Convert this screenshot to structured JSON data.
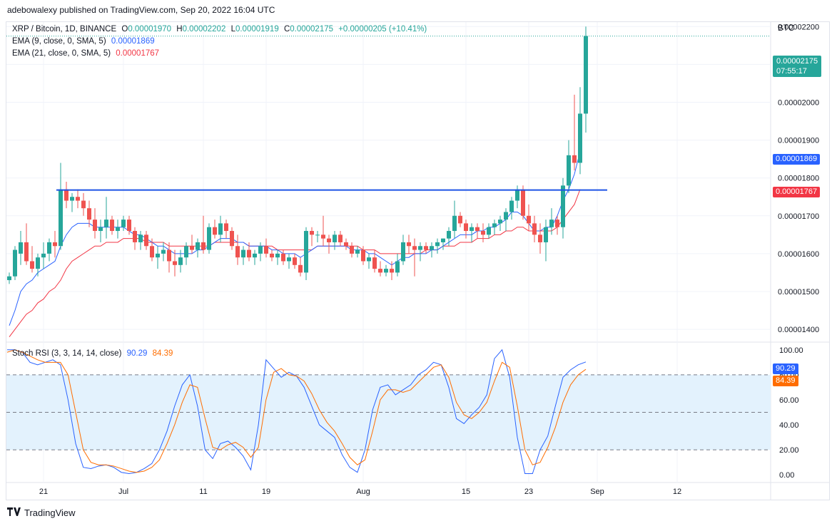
{
  "header": {
    "publisher_line": "adebowalexy published on TradingView.com, Sep 20, 2022 16:04 UTC"
  },
  "legend": {
    "symbol": "XRP / Bitcoin, 1D, BINANCE",
    "o_label": "O",
    "o_value": "0.00001970",
    "h_label": "H",
    "h_value": "0.00002202",
    "l_label": "L",
    "l_value": "0.00001919",
    "c_label": "C",
    "c_value": "0.00002175",
    "change": "+0.00000205 (+10.41%)",
    "ema9_label": "EMA (9, close, 0, SMA, 5)",
    "ema9_value": "0.00001869",
    "ema21_label": "EMA (21, close, 0, SMA, 5)",
    "ema21_value": "0.00001767",
    "rsi_label": "Stoch RSI (3, 3, 14, 14, close)",
    "rsi_k_value": "90.29",
    "rsi_d_value": "84.39"
  },
  "price_axis": {
    "currency": "BTC",
    "last_price": "0.00002175",
    "countdown": "07:55:17",
    "ema9_tag": "0.00001869",
    "ema21_tag": "0.00001767"
  },
  "rsi_axis": {
    "k_tag": "90.29",
    "d_tag": "84.39"
  },
  "footer": {
    "brand": "TradingView"
  },
  "colors": {
    "up": "#26a69a",
    "down": "#ef5350",
    "ema9": "#2962ff",
    "ema21": "#f23645",
    "rsi_k": "#2962ff",
    "rsi_d": "#ff6d00",
    "hline": "#1e53e5",
    "band": "#e3f2fd"
  },
  "chart_data": [
    {
      "type": "candlestick",
      "title": "XRP / Bitcoin, 1D, BINANCE",
      "ylim": [
        1.37e-05,
        2.21e-05
      ],
      "y_ticks": [
        1.4e-05,
        1.5e-05,
        1.6e-05,
        1.7e-05,
        1.8e-05,
        1.9e-05,
        2e-05,
        2.1e-05,
        2.2e-05
      ],
      "y_tick_labels": [
        "0.00001400",
        "0.00001500",
        "0.00001600",
        "0.00001700",
        "0.00001800",
        "0.00001900",
        "0.00002000",
        "0.00002100",
        "0.00002200"
      ],
      "x_tick_labels": [
        "21",
        "Jul",
        "11",
        "19",
        "Aug",
        "15",
        "23",
        "Sep",
        "12"
      ],
      "x_tick_index": [
        6,
        20,
        34,
        45,
        62,
        80,
        91,
        103,
        117
      ],
      "horizontal_line": 1.768e-05,
      "ohlc": [
        [
          1.53e-05,
          1.55e-05,
          1.52e-05,
          1.54e-05
        ],
        [
          1.54e-05,
          1.62e-05,
          1.53e-05,
          1.61e-05
        ],
        [
          1.6e-05,
          1.66e-05,
          1.57e-05,
          1.63e-05
        ],
        [
          1.63e-05,
          1.68e-05,
          1.57e-05,
          1.58e-05
        ],
        [
          1.58e-05,
          1.62e-05,
          1.55e-05,
          1.56e-05
        ],
        [
          1.56e-05,
          1.6e-05,
          1.54e-05,
          1.59e-05
        ],
        [
          1.59e-05,
          1.63e-05,
          1.56e-05,
          1.6e-05
        ],
        [
          1.6e-05,
          1.64e-05,
          1.58e-05,
          1.63e-05
        ],
        [
          1.63e-05,
          1.66e-05,
          1.59e-05,
          1.62e-05
        ],
        [
          1.62e-05,
          1.84e-05,
          1.61e-05,
          1.77e-05
        ],
        [
          1.77e-05,
          1.79e-05,
          1.72e-05,
          1.74e-05
        ],
        [
          1.74e-05,
          1.76e-05,
          1.71e-05,
          1.75e-05
        ],
        [
          1.75e-05,
          1.77e-05,
          1.72e-05,
          1.74e-05
        ],
        [
          1.74e-05,
          1.76e-05,
          1.7e-05,
          1.72e-05
        ],
        [
          1.72e-05,
          1.74e-05,
          1.67e-05,
          1.69e-05
        ],
        [
          1.69e-05,
          1.72e-05,
          1.64e-05,
          1.66e-05
        ],
        [
          1.66e-05,
          1.69e-05,
          1.63e-05,
          1.67e-05
        ],
        [
          1.67e-05,
          1.75e-05,
          1.64e-05,
          1.69e-05
        ],
        [
          1.69e-05,
          1.7e-05,
          1.65e-05,
          1.66e-05
        ],
        [
          1.66e-05,
          1.69e-05,
          1.64e-05,
          1.67e-05
        ],
        [
          1.67e-05,
          1.7e-05,
          1.66e-05,
          1.69e-05
        ],
        [
          1.69e-05,
          1.7e-05,
          1.65e-05,
          1.66e-05
        ],
        [
          1.66e-05,
          1.67e-05,
          1.61e-05,
          1.63e-05
        ],
        [
          1.63e-05,
          1.66e-05,
          1.61e-05,
          1.65e-05
        ],
        [
          1.65e-05,
          1.66e-05,
          1.61e-05,
          1.62e-05
        ],
        [
          1.62e-05,
          1.64e-05,
          1.58e-05,
          1.59e-05
        ],
        [
          1.59e-05,
          1.62e-05,
          1.56e-05,
          1.6e-05
        ],
        [
          1.6e-05,
          1.63e-05,
          1.58e-05,
          1.61e-05
        ],
        [
          1.61e-05,
          1.63e-05,
          1.55e-05,
          1.58e-05
        ],
        [
          1.58e-05,
          1.61e-05,
          1.54e-05,
          1.57e-05
        ],
        [
          1.57e-05,
          1.61e-05,
          1.55e-05,
          1.59e-05
        ],
        [
          1.59e-05,
          1.63e-05,
          1.57e-05,
          1.62e-05
        ],
        [
          1.62e-05,
          1.65e-05,
          1.6e-05,
          1.61e-05
        ],
        [
          1.61e-05,
          1.64e-05,
          1.59e-05,
          1.63e-05
        ],
        [
          1.63e-05,
          1.7e-05,
          1.6e-05,
          1.61e-05
        ],
        [
          1.61e-05,
          1.68e-05,
          1.6e-05,
          1.67e-05
        ],
        [
          1.67e-05,
          1.69e-05,
          1.64e-05,
          1.65e-05
        ],
        [
          1.65e-05,
          1.7e-05,
          1.63e-05,
          1.68e-05
        ],
        [
          1.68e-05,
          1.69e-05,
          1.64e-05,
          1.66e-05
        ],
        [
          1.66e-05,
          1.67e-05,
          1.61e-05,
          1.62e-05
        ],
        [
          1.62e-05,
          1.65e-05,
          1.57e-05,
          1.59e-05
        ],
        [
          1.59e-05,
          1.62e-05,
          1.57e-05,
          1.61e-05
        ],
        [
          1.61e-05,
          1.63e-05,
          1.58e-05,
          1.59e-05
        ],
        [
          1.59e-05,
          1.61e-05,
          1.57e-05,
          1.6e-05
        ],
        [
          1.6e-05,
          1.63e-05,
          1.58e-05,
          1.62e-05
        ],
        [
          1.62e-05,
          1.64e-05,
          1.59e-05,
          1.6e-05
        ],
        [
          1.6e-05,
          1.61e-05,
          1.58e-05,
          1.59e-05
        ],
        [
          1.59e-05,
          1.61e-05,
          1.57e-05,
          1.6e-05
        ],
        [
          1.6e-05,
          1.61e-05,
          1.57e-05,
          1.58e-05
        ],
        [
          1.58e-05,
          1.6e-05,
          1.56e-05,
          1.59e-05
        ],
        [
          1.59e-05,
          1.6e-05,
          1.56e-05,
          1.57e-05
        ],
        [
          1.57e-05,
          1.59e-05,
          1.54e-05,
          1.55e-05
        ],
        [
          1.55e-05,
          1.67e-05,
          1.53e-05,
          1.66e-05
        ],
        [
          1.66e-05,
          1.67e-05,
          1.62e-05,
          1.65e-05
        ],
        [
          1.65e-05,
          1.66e-05,
          1.63e-05,
          1.65e-05
        ],
        [
          1.65e-05,
          1.7e-05,
          1.62e-05,
          1.64e-05
        ],
        [
          1.64e-05,
          1.65e-05,
          1.6e-05,
          1.63e-05
        ],
        [
          1.63e-05,
          1.66e-05,
          1.61e-05,
          1.65e-05
        ],
        [
          1.65e-05,
          1.66e-05,
          1.62e-05,
          1.63e-05
        ],
        [
          1.63e-05,
          1.64e-05,
          1.61e-05,
          1.62e-05
        ],
        [
          1.62e-05,
          1.63e-05,
          1.59e-05,
          1.6e-05
        ],
        [
          1.6e-05,
          1.62e-05,
          1.59e-05,
          1.61e-05
        ],
        [
          1.61e-05,
          1.62e-05,
          1.57e-05,
          1.58e-05
        ],
        [
          1.58e-05,
          1.6e-05,
          1.56e-05,
          1.59e-05
        ],
        [
          1.59e-05,
          1.61e-05,
          1.55e-05,
          1.56e-05
        ],
        [
          1.56e-05,
          1.58e-05,
          1.54e-05,
          1.55e-05
        ],
        [
          1.55e-05,
          1.57e-05,
          1.54e-05,
          1.56e-05
        ],
        [
          1.56e-05,
          1.58e-05,
          1.53e-05,
          1.55e-05
        ],
        [
          1.55e-05,
          1.6e-05,
          1.54e-05,
          1.58e-05
        ],
        [
          1.58e-05,
          1.65e-05,
          1.57e-05,
          1.63e-05
        ],
        [
          1.63e-05,
          1.65e-05,
          1.6e-05,
          1.62e-05
        ],
        [
          1.62e-05,
          1.64e-05,
          1.54e-05,
          1.61e-05
        ],
        [
          1.61e-05,
          1.63e-05,
          1.58e-05,
          1.62e-05
        ],
        [
          1.62e-05,
          1.63e-05,
          1.6e-05,
          1.61e-05
        ],
        [
          1.61e-05,
          1.63e-05,
          1.59e-05,
          1.62e-05
        ],
        [
          1.62e-05,
          1.64e-05,
          1.6e-05,
          1.63e-05
        ],
        [
          1.63e-05,
          1.64e-05,
          1.61e-05,
          1.64e-05
        ],
        [
          1.64e-05,
          1.67e-05,
          1.62e-05,
          1.66e-05
        ],
        [
          1.66e-05,
          1.74e-05,
          1.64e-05,
          1.7e-05
        ],
        [
          1.7e-05,
          1.71e-05,
          1.67e-05,
          1.68e-05
        ],
        [
          1.68e-05,
          1.69e-05,
          1.64e-05,
          1.66e-05
        ],
        [
          1.66e-05,
          1.68e-05,
          1.63e-05,
          1.67e-05
        ],
        [
          1.67e-05,
          1.68e-05,
          1.64e-05,
          1.66e-05
        ],
        [
          1.66e-05,
          1.68e-05,
          1.63e-05,
          1.65e-05
        ],
        [
          1.65e-05,
          1.68e-05,
          1.64e-05,
          1.67e-05
        ],
        [
          1.67e-05,
          1.69e-05,
          1.65e-05,
          1.68e-05
        ],
        [
          1.68e-05,
          1.7e-05,
          1.66e-05,
          1.69e-05
        ],
        [
          1.69e-05,
          1.72e-05,
          1.66e-05,
          1.71e-05
        ],
        [
          1.71e-05,
          1.75e-05,
          1.69e-05,
          1.74e-05
        ],
        [
          1.74e-05,
          1.78e-05,
          1.72e-05,
          1.77e-05
        ],
        [
          1.77e-05,
          1.78e-05,
          1.69e-05,
          1.7e-05
        ],
        [
          1.7e-05,
          1.73e-05,
          1.66e-05,
          1.68e-05
        ],
        [
          1.68e-05,
          1.7e-05,
          1.63e-05,
          1.65e-05
        ],
        [
          1.65e-05,
          1.68e-05,
          1.6e-05,
          1.63e-05
        ],
        [
          1.63e-05,
          1.69e-05,
          1.58e-05,
          1.67e-05
        ],
        [
          1.67e-05,
          1.72e-05,
          1.65e-05,
          1.69e-05
        ],
        [
          1.69e-05,
          1.7e-05,
          1.65e-05,
          1.67e-05
        ],
        [
          1.67e-05,
          1.8e-05,
          1.64e-05,
          1.78e-05
        ],
        [
          1.78e-05,
          1.9e-05,
          1.76e-05,
          1.86e-05
        ],
        [
          1.86e-05,
          2.02e-05,
          1.82e-05,
          1.84e-05
        ],
        [
          1.84e-05,
          2.04e-05,
          1.81e-05,
          1.97e-05
        ],
        [
          1.97e-05,
          2.2e-05,
          1.92e-05,
          2.175e-05
        ]
      ],
      "ema9": [
        1.41e-05,
        1.45e-05,
        1.5e-05,
        1.52e-05,
        1.53e-05,
        1.55e-05,
        1.56e-05,
        1.57e-05,
        1.58e-05,
        1.62e-05,
        1.65e-05,
        1.67e-05,
        1.68e-05,
        1.68e-05,
        1.68e-05,
        1.67e-05,
        1.67e-05,
        1.67e-05,
        1.67e-05,
        1.67e-05,
        1.67e-05,
        1.66e-05,
        1.65e-05,
        1.65e-05,
        1.64e-05,
        1.63e-05,
        1.62e-05,
        1.62e-05,
        1.61e-05,
        1.6e-05,
        1.6e-05,
        1.6e-05,
        1.6e-05,
        1.61e-05,
        1.61e-05,
        1.62e-05,
        1.63e-05,
        1.64e-05,
        1.64e-05,
        1.64e-05,
        1.63e-05,
        1.63e-05,
        1.62e-05,
        1.62e-05,
        1.62e-05,
        1.62e-05,
        1.61e-05,
        1.61e-05,
        1.6e-05,
        1.6e-05,
        1.6e-05,
        1.59e-05,
        1.6e-05,
        1.61e-05,
        1.62e-05,
        1.62e-05,
        1.62e-05,
        1.62e-05,
        1.62e-05,
        1.62e-05,
        1.61e-05,
        1.61e-05,
        1.61e-05,
        1.6e-05,
        1.6e-05,
        1.59e-05,
        1.58e-05,
        1.57e-05,
        1.58e-05,
        1.59e-05,
        1.59e-05,
        1.6e-05,
        1.6e-05,
        1.6e-05,
        1.61e-05,
        1.61e-05,
        1.62e-05,
        1.63e-05,
        1.64e-05,
        1.65e-05,
        1.65e-05,
        1.65e-05,
        1.66e-05,
        1.66e-05,
        1.67e-05,
        1.67e-05,
        1.68e-05,
        1.69e-05,
        1.71e-05,
        1.71e-05,
        1.7e-05,
        1.68e-05,
        1.66e-05,
        1.66e-05,
        1.67e-05,
        1.67e-05,
        1.7e-05,
        1.74e-05,
        1.77e-05,
        1.81e-05,
        1.87e-05
      ],
      "ema21": [
        1.38e-05,
        1.4e-05,
        1.42e-05,
        1.44e-05,
        1.45e-05,
        1.47e-05,
        1.48e-05,
        1.5e-05,
        1.51e-05,
        1.53e-05,
        1.56e-05,
        1.58e-05,
        1.59e-05,
        1.6e-05,
        1.61e-05,
        1.62e-05,
        1.62e-05,
        1.63e-05,
        1.63e-05,
        1.63e-05,
        1.64e-05,
        1.64e-05,
        1.64e-05,
        1.64e-05,
        1.63e-05,
        1.63e-05,
        1.63e-05,
        1.63e-05,
        1.62e-05,
        1.62e-05,
        1.62e-05,
        1.62e-05,
        1.62e-05,
        1.62e-05,
        1.62e-05,
        1.62e-05,
        1.63e-05,
        1.63e-05,
        1.63e-05,
        1.63e-05,
        1.63e-05,
        1.63e-05,
        1.62e-05,
        1.62e-05,
        1.62e-05,
        1.62e-05,
        1.62e-05,
        1.61e-05,
        1.61e-05,
        1.61e-05,
        1.61e-05,
        1.61e-05,
        1.61e-05,
        1.61e-05,
        1.62e-05,
        1.62e-05,
        1.62e-05,
        1.62e-05,
        1.62e-05,
        1.62e-05,
        1.62e-05,
        1.62e-05,
        1.61e-05,
        1.61e-05,
        1.61e-05,
        1.6e-05,
        1.6e-05,
        1.6e-05,
        1.6e-05,
        1.6e-05,
        1.6e-05,
        1.6e-05,
        1.6e-05,
        1.61e-05,
        1.61e-05,
        1.61e-05,
        1.62e-05,
        1.62e-05,
        1.62e-05,
        1.63e-05,
        1.63e-05,
        1.63e-05,
        1.64e-05,
        1.64e-05,
        1.64e-05,
        1.65e-05,
        1.65e-05,
        1.66e-05,
        1.66e-05,
        1.67e-05,
        1.67e-05,
        1.66e-05,
        1.66e-05,
        1.66e-05,
        1.66e-05,
        1.66e-05,
        1.67e-05,
        1.69e-05,
        1.71e-05,
        1.73e-05,
        1.77e-05
      ]
    },
    {
      "type": "line",
      "title": "Stoch RSI (3, 3, 14, 14, close)",
      "ylim": [
        -5,
        105
      ],
      "y_tick_labels": [
        "100.00",
        "80.00",
        "60.00",
        "40.00",
        "20.00",
        "0.00"
      ],
      "y_ticks": [
        100,
        80,
        60,
        40,
        20,
        0
      ],
      "band": [
        20,
        80
      ],
      "series": [
        {
          "name": "%K",
          "values": [
            100,
            100,
            98,
            90,
            88,
            90,
            92,
            88,
            60,
            25,
            6,
            5,
            7,
            8,
            6,
            2,
            1,
            2,
            5,
            9,
            20,
            35,
            55,
            72,
            80,
            55,
            20,
            13,
            25,
            27,
            22,
            15,
            4,
            40,
            92,
            85,
            78,
            82,
            79,
            70,
            55,
            40,
            35,
            30,
            16,
            6,
            2,
            20,
            52,
            70,
            72,
            64,
            68,
            72,
            80,
            84,
            90,
            88,
            70,
            45,
            41,
            48,
            54,
            64,
            93,
            100,
            78,
            30,
            1,
            1,
            20,
            31,
            55,
            78,
            84,
            88,
            90.29
          ]
        },
        {
          "name": "%D",
          "values": [
            98,
            100,
            98,
            95,
            92,
            90,
            90,
            90,
            80,
            50,
            20,
            10,
            8,
            8,
            7,
            5,
            3,
            2,
            3,
            6,
            12,
            25,
            40,
            58,
            72,
            70,
            45,
            22,
            20,
            24,
            26,
            22,
            14,
            22,
            60,
            82,
            85,
            80,
            79,
            75,
            65,
            52,
            42,
            35,
            25,
            14,
            8,
            12,
            35,
            60,
            68,
            68,
            66,
            68,
            74,
            80,
            86,
            88,
            78,
            58,
            48,
            45,
            50,
            58,
            75,
            90,
            86,
            55,
            20,
            8,
            10,
            22,
            38,
            58,
            72,
            80,
            84.39
          ]
        }
      ]
    }
  ]
}
